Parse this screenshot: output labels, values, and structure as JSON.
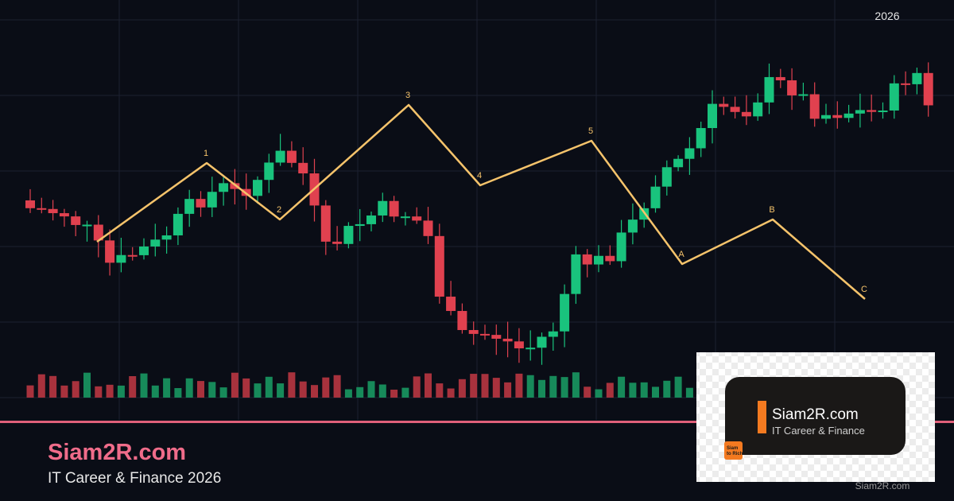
{
  "header": {
    "year": "2026"
  },
  "waves": [
    "1",
    "2",
    "3",
    "4",
    "5",
    "A",
    "B",
    "C"
  ],
  "brand": {
    "name": "Siam2R.com",
    "tagline": "IT Career & Finance 2026"
  },
  "logo": {
    "name": "Siam2R.com",
    "tagline": "IT Career & Finance",
    "badge_lines": [
      "Siam",
      "to Rich"
    ]
  },
  "watermark": "Siam2R.com"
}
